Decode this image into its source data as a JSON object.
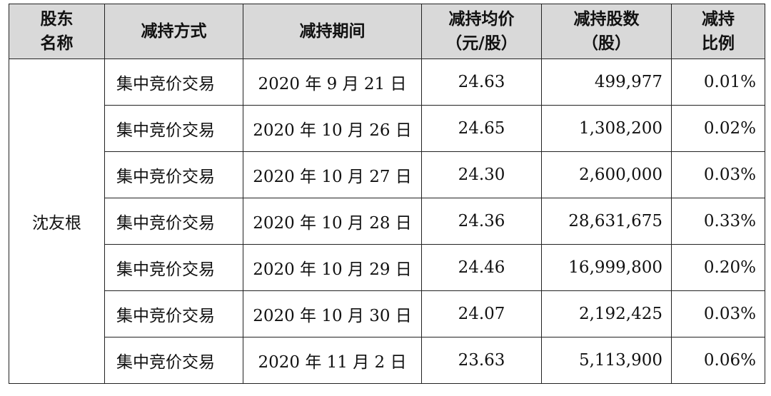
{
  "table": {
    "header": [
      [
        "股东",
        "名称"
      ],
      [
        "减持方式"
      ],
      [
        "减持期间"
      ],
      [
        "减持均价",
        "（元/股）"
      ],
      [
        "减持股数",
        "（股）"
      ],
      [
        "减持",
        "比例"
      ]
    ],
    "shareholder": "沈友根",
    "rows": [
      [
        "集中竞价交易",
        "2020 年 9 月 21 日",
        "24.63",
        "499,977",
        "0.01%"
      ],
      [
        "集中竞价交易",
        "2020 年 10 月 26 日",
        "24.65",
        "1,308,200",
        "0.02%"
      ],
      [
        "集中竞价交易",
        "2020 年 10 月 27 日",
        "24.30",
        "2,600,000",
        "0.03%"
      ],
      [
        "集中竞价交易",
        "2020 年 10 月 28 日",
        "24.36",
        "28,631,675",
        "0.33%"
      ],
      [
        "集中竞价交易",
        "2020 年 10 月 29 日",
        "24.46",
        "16,999,800",
        "0.20%"
      ],
      [
        "集中竞价交易",
        "2020 年 10 月 30 日",
        "24.07",
        "2,192,425",
        "0.03%"
      ],
      [
        "集中竞价交易",
        "2020 年 11 月 2 日",
        "23.63",
        "5,113,900",
        "0.06%"
      ]
    ]
  }
}
